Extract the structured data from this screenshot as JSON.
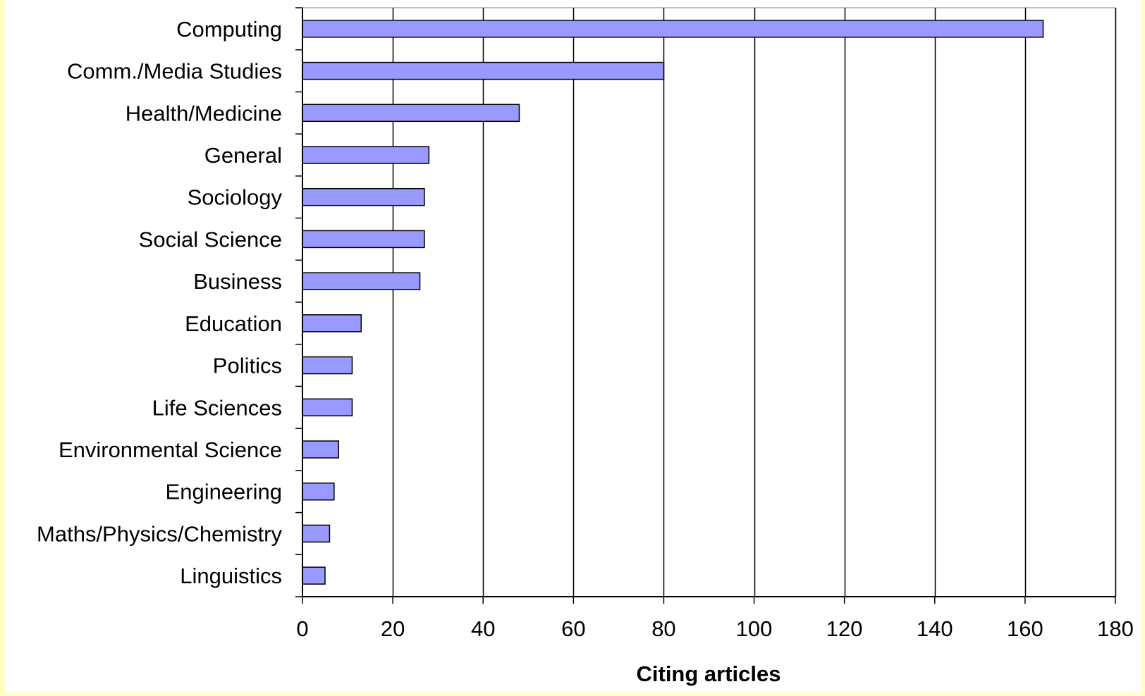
{
  "chart_data": {
    "type": "bar",
    "orientation": "horizontal",
    "categories": [
      "Computing",
      "Comm./Media Studies",
      "Health/Medicine",
      "General",
      "Sociology",
      "Social Science",
      "Business",
      "Education",
      "Politics",
      "Life Sciences",
      "Environmental Science",
      "Engineering",
      "Maths/Physics/Chemistry",
      "Linguistics"
    ],
    "values": [
      164,
      80,
      48,
      28,
      27,
      27,
      26,
      13,
      11,
      11,
      8,
      7,
      6,
      5
    ],
    "xlabel": "Citing articles",
    "ylabel": "",
    "xlim": [
      0,
      180
    ],
    "x_ticks": [
      0,
      20,
      40,
      60,
      80,
      100,
      120,
      140,
      160,
      180
    ],
    "x_tick_labels": [
      "0",
      "20",
      "40",
      "60",
      "80",
      "100",
      "120",
      "140",
      "160",
      "180"
    ],
    "grid": "vertical",
    "legend": "none",
    "bar_color": "#9999ff",
    "bar_edge_color": "#000000"
  },
  "colors": {
    "page_background": "#ffffc6",
    "plot_background": "#ffffff",
    "gridline": "#000000",
    "plot_border": "#808080"
  }
}
